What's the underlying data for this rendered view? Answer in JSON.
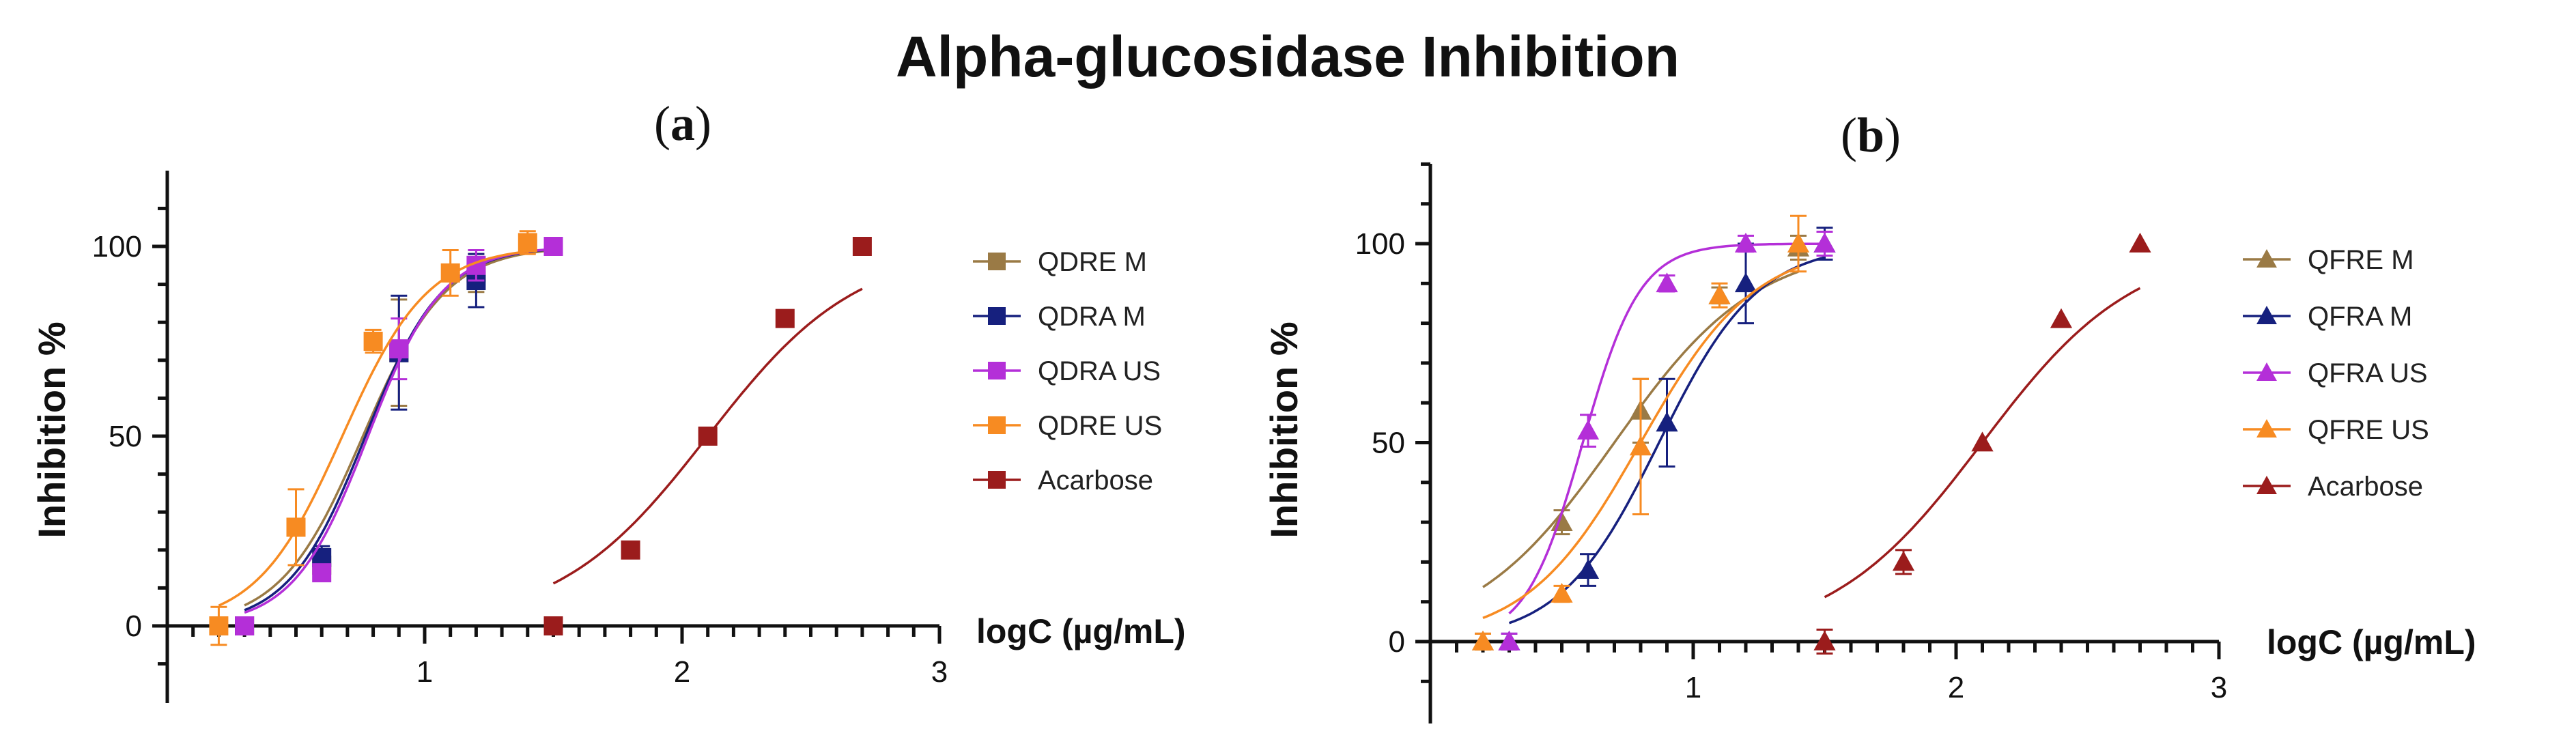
{
  "title": "Alpha-glucosidase Inhibition",
  "chart_data": [
    {
      "panel": "a",
      "panel_open": "(",
      "panel_letter": "a",
      "panel_close": ")",
      "type": "scatter",
      "title": "",
      "xlabel": "logC (µg/mL)",
      "ylabel": "Inhibition %",
      "xlim": [
        0,
        3
      ],
      "ylim": [
        -18,
        120
      ],
      "x_ticks": [
        "1",
        "2",
        "3"
      ],
      "y_ticks": [
        "0",
        "50",
        "100"
      ],
      "marker": "square",
      "legend_position": "right",
      "series": [
        {
          "name": "QDRE M",
          "color": "#9a7a45",
          "x": [
            0.3,
            0.6,
            0.9,
            1.2,
            1.5
          ],
          "y": [
            0,
            16,
            72,
            93,
            100
          ],
          "err": [
            2,
            3,
            14,
            5,
            2
          ],
          "fit_ic50": 0.76,
          "fit_hill": 2.7
        },
        {
          "name": "QDRA M",
          "color": "#16207e",
          "x": [
            0.3,
            0.6,
            0.9,
            1.2,
            1.5
          ],
          "y": [
            0,
            18,
            72,
            91,
            100
          ],
          "err": [
            2,
            3,
            15,
            7,
            2
          ],
          "fit_ic50": 0.77,
          "fit_hill": 2.9
        },
        {
          "name": "QDRA US",
          "color": "#b42fd8",
          "x": [
            0.3,
            0.6,
            0.9,
            1.2,
            1.5
          ],
          "y": [
            0,
            14,
            73,
            95,
            100
          ],
          "err": [
            2,
            2,
            8,
            4,
            2
          ],
          "fit_ic50": 0.78,
          "fit_hill": 3.0
        },
        {
          "name": "QDRE US",
          "color": "#f78b22",
          "x": [
            0.2,
            0.5,
            0.8,
            1.1,
            1.4
          ],
          "y": [
            0,
            26,
            75,
            93,
            101
          ],
          "err": [
            5,
            10,
            3,
            6,
            3
          ],
          "fit_ic50": 0.68,
          "fit_hill": 2.6
        },
        {
          "name": "Acarbose",
          "color": "#9b1c1c",
          "x": [
            1.5,
            1.8,
            2.1,
            2.4,
            2.7
          ],
          "y": [
            0,
            20,
            50,
            81,
            100
          ],
          "err": [
            0,
            0,
            0,
            0,
            0
          ],
          "fit_ic50": 2.1,
          "fit_hill": 1.5
        }
      ]
    },
    {
      "panel": "b",
      "panel_open": "(",
      "panel_letter": "b",
      "panel_close": ")",
      "type": "scatter",
      "title": "",
      "xlabel": "logC (µg/mL)",
      "ylabel": "Inhibition %",
      "xlim": [
        0,
        3
      ],
      "ylim": [
        -18,
        125
      ],
      "x_ticks": [
        "1",
        "2",
        "3"
      ],
      "y_ticks": [
        "0",
        "50",
        "100"
      ],
      "marker": "triangle",
      "legend_position": "right",
      "series": [
        {
          "name": "QFRE M",
          "color": "#9a7a45",
          "x": [
            0.2,
            0.5,
            0.8,
            1.1,
            1.4
          ],
          "y": [
            0,
            30,
            58,
            87,
            99
          ],
          "err": [
            2,
            3,
            8,
            2,
            3
          ],
          "fit_ic50": 0.7,
          "fit_hill": 1.6
        },
        {
          "name": "QFRA M",
          "color": "#16207e",
          "x": [
            0.3,
            0.6,
            0.9,
            1.2,
            1.5
          ],
          "y": [
            0,
            18,
            55,
            90,
            100
          ],
          "err": [
            2,
            4,
            11,
            10,
            4
          ],
          "fit_ic50": 0.87,
          "fit_hill": 2.3
        },
        {
          "name": "QFRA US",
          "color": "#b42fd8",
          "x": [
            0.3,
            0.6,
            0.9,
            1.2,
            1.5
          ],
          "y": [
            0,
            53,
            90,
            100,
            100
          ],
          "err": [
            2,
            4,
            2,
            2,
            3
          ],
          "fit_ic50": 0.58,
          "fit_hill": 4.0
        },
        {
          "name": "QFRE US",
          "color": "#f78b22",
          "x": [
            0.2,
            0.5,
            0.8,
            1.1,
            1.4
          ],
          "y": [
            0,
            12,
            49,
            87,
            100
          ],
          "err": [
            2,
            2,
            17,
            3,
            7
          ],
          "fit_ic50": 0.8,
          "fit_hill": 2.0
        },
        {
          "name": "Acarbose",
          "color": "#9b1c1c",
          "x": [
            1.5,
            1.8,
            2.1,
            2.4,
            2.7
          ],
          "y": [
            0,
            20,
            50,
            81,
            100
          ],
          "err": [
            3,
            3,
            0,
            0,
            0
          ],
          "fit_ic50": 2.1,
          "fit_hill": 1.5
        }
      ]
    }
  ]
}
